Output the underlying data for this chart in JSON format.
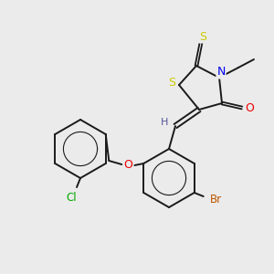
{
  "background_color": "#ebebeb",
  "bond_color": "#1a1a1a",
  "atom_colors": {
    "S": "#cccc00",
    "N": "#0000ee",
    "O": "#ee0000",
    "Cl": "#00aa00",
    "Br": "#bb5500",
    "H": "#555599",
    "C": "#1a1a1a"
  },
  "figsize": [
    3.0,
    3.0
  ],
  "dpi": 100
}
